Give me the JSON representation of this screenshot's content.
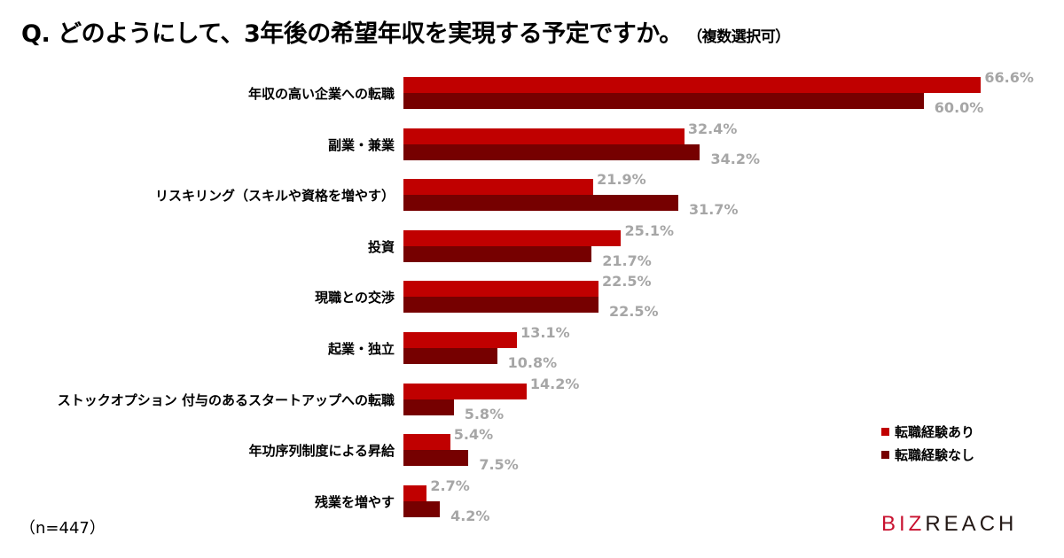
{
  "title": {
    "question": "Q. どのようにして、3年後の希望年収を実現する予定ですか。",
    "note": "（複数選択可）"
  },
  "sample_note": "（n=447）",
  "logo": {
    "part1": "BIZ",
    "part2": "REACH"
  },
  "legend": [
    {
      "label": "転職経験あり",
      "color": "#c00000"
    },
    {
      "label": "転職経験なし",
      "color": "#760000"
    }
  ],
  "chart_data": {
    "type": "bar",
    "orientation": "horizontal",
    "title": "Q. どのようにして、3年後の希望年収を実現する予定ですか。（複数選択可）",
    "xlabel": "",
    "ylabel": "",
    "unit": "%",
    "grid": false,
    "legend_position": "right-bottom",
    "categories": [
      "年収の高い企業への転職",
      "副業・兼業",
      "リスキリング（スキルや資格を増やす）",
      "投資",
      "現職との交渉",
      "起業・独立",
      "ストックオプション 付与のあるスタートアップへの転職",
      "年功序列制度による昇給",
      "残業を増やす"
    ],
    "series": [
      {
        "name": "転職経験あり",
        "color": "#c00000",
        "values": [
          66.6,
          32.4,
          21.9,
          25.1,
          22.5,
          13.1,
          14.2,
          5.4,
          2.7
        ]
      },
      {
        "name": "転職経験なし",
        "color": "#760000",
        "values": [
          60.0,
          34.2,
          31.7,
          21.7,
          22.5,
          10.8,
          5.8,
          7.5,
          4.2
        ]
      }
    ],
    "value_labels": {
      "s1": [
        "66.6%",
        "32.4%",
        "21.9%",
        "25.1%",
        "22.5%",
        "13.1%",
        "14.2%",
        "5.4%",
        "2.7%"
      ],
      "s2": [
        "60.0%",
        "34.2%",
        "31.7%",
        "21.7%",
        "22.5%",
        "10.8%",
        "5.8%",
        "7.5%",
        "4.2%"
      ]
    },
    "n": 447
  }
}
